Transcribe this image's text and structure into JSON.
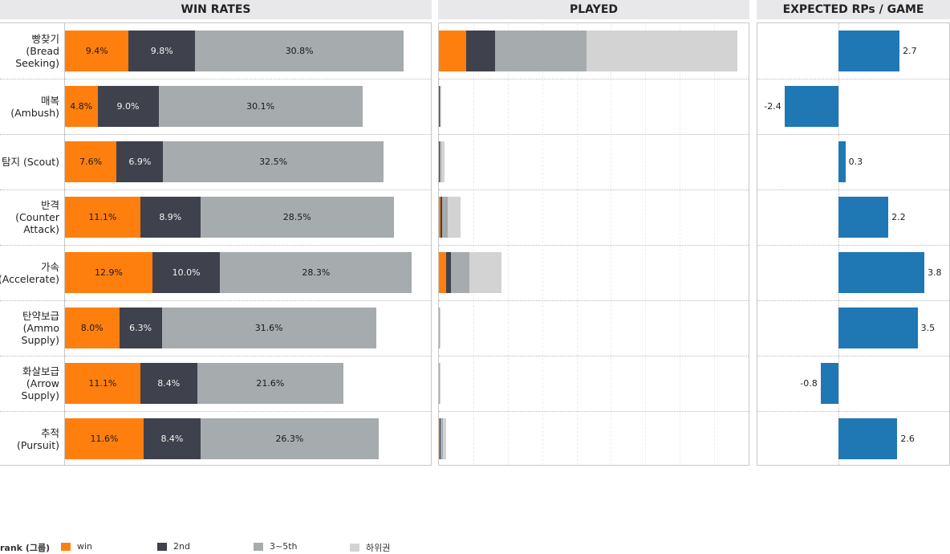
{
  "headers": {
    "win_rates": "WIN RATES",
    "played": "PLAYED",
    "expected": "EXPECTED RPs / GAME"
  },
  "colors": {
    "win": "#ff7f0e",
    "second": "#3f424c",
    "third_fifth": "#a6abad",
    "lower": "#d3d3d3",
    "rp": "#1f77b4"
  },
  "legend": {
    "title": "rank (그룹)",
    "items": [
      {
        "key": "win",
        "label": "win",
        "color": "#ff7f0e"
      },
      {
        "key": "second",
        "label": "2nd",
        "color": "#3f424c"
      },
      {
        "key": "third_fifth",
        "label": "3~5th",
        "color": "#a6abad"
      },
      {
        "key": "lower",
        "label": "하위권",
        "color": "#d3d3d3"
      }
    ]
  },
  "chart_data": [
    {
      "type": "bar",
      "title": "WIN RATES",
      "stacked": true,
      "orientation": "horizontal",
      "categories": [
        "빵찾기\n(Bread\nSeeking)",
        "매복\n(Ambush)",
        "탐지 (Scout)",
        "반격\n(Counter\nAttack)",
        "가속\n(Accelerate)",
        "탄약보급\n(Ammo\nSupply)",
        "화살보급\n(Arrow\nSupply)",
        "추적\n(Pursuit)"
      ],
      "series": [
        {
          "name": "win",
          "values": [
            9.4,
            4.8,
            7.6,
            11.1,
            12.9,
            8.0,
            11.1,
            11.6
          ],
          "labels": [
            "9.4%",
            "4.8%",
            "7.6%",
            "11.1%",
            "12.9%",
            "8.0%",
            "11.1%",
            "11.6%"
          ]
        },
        {
          "name": "2nd",
          "values": [
            9.8,
            9.0,
            6.9,
            8.9,
            10.0,
            6.3,
            8.4,
            8.4
          ],
          "labels": [
            "9.8%",
            "9.0%",
            "6.9%",
            "8.9%",
            "10.0%",
            "6.3%",
            "8.4%",
            "8.4%"
          ]
        },
        {
          "name": "3~5th",
          "values": [
            30.8,
            30.1,
            32.5,
            28.5,
            28.3,
            31.6,
            21.6,
            26.3
          ],
          "labels": [
            "30.8%",
            "30.1%",
            "32.5%",
            "28.5%",
            "28.3%",
            "31.6%",
            "21.6%",
            "26.3%"
          ]
        }
      ],
      "xlim": [
        0,
        54
      ]
    },
    {
      "type": "bar",
      "title": "PLAYED",
      "stacked": true,
      "orientation": "horizontal",
      "categories": [
        "빵찾기 (Bread Seeking)",
        "매복 (Ambush)",
        "탐지 (Scout)",
        "반격 (Counter Attack)",
        "가속 (Accelerate)",
        "탄약보급 (Ammo Supply)",
        "화살보급 (Arrow Supply)",
        "추적 (Pursuit)"
      ],
      "series": [
        {
          "name": "win",
          "values": [
            800,
            4,
            10,
            50,
            200,
            3,
            3,
            20
          ]
        },
        {
          "name": "2nd",
          "values": [
            840,
            8,
            10,
            40,
            150,
            3,
            3,
            15
          ]
        },
        {
          "name": "3~5th",
          "values": [
            2660,
            25,
            60,
            160,
            540,
            12,
            10,
            70
          ]
        },
        {
          "name": "하위권",
          "values": [
            4380,
            30,
            90,
            380,
            930,
            15,
            12,
            100
          ]
        }
      ],
      "xlim": [
        0,
        9000
      ]
    },
    {
      "type": "bar",
      "title": "EXPECTED RPs / GAME",
      "orientation": "horizontal",
      "categories": [
        "빵찾기 (Bread Seeking)",
        "매복 (Ambush)",
        "탐지 (Scout)",
        "반격 (Counter Attack)",
        "가속 (Accelerate)",
        "탄약보급 (Ammo Supply)",
        "화살보급 (Arrow Supply)",
        "추적 (Pursuit)"
      ],
      "values": [
        2.7,
        -2.4,
        0.3,
        2.2,
        3.8,
        3.5,
        -0.8,
        2.6
      ],
      "labels": [
        "2.7",
        "-2.4",
        "0.3",
        "2.2",
        "3.8",
        "3.5",
        "-0.8",
        "2.6"
      ],
      "xlim": [
        -3.6,
        4.9
      ]
    }
  ],
  "row_labels": [
    "빵찾기\n(Bread\nSeeking)",
    "매복\n(Ambush)",
    "탐지 (Scout)",
    "반격\n(Counter\nAttack)",
    "가속\n(Accelerate)",
    "탄약보급\n(Ammo\nSupply)",
    "화살보급\n(Arrow\nSupply)",
    "추적\n(Pursuit)"
  ]
}
